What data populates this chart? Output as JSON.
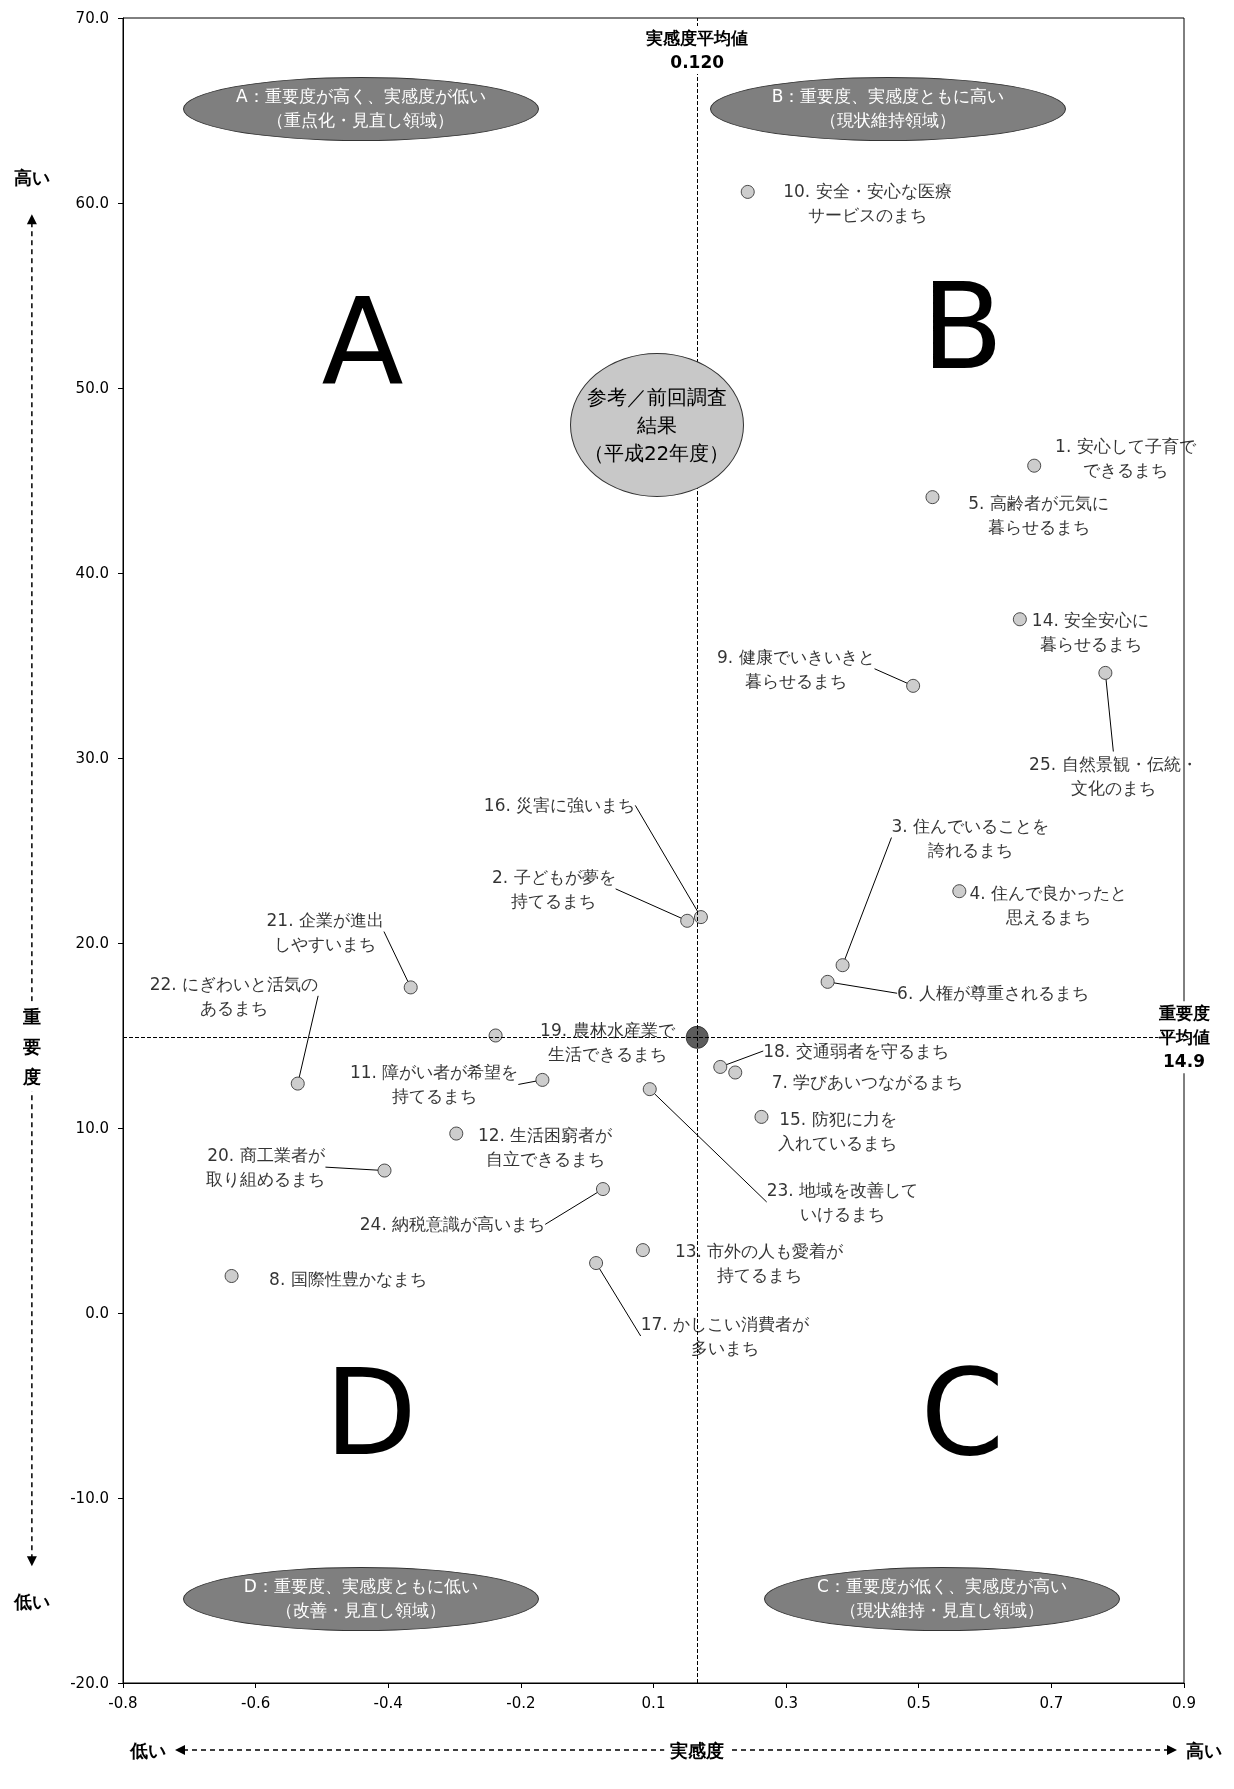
{
  "chart_data": {
    "type": "scatter",
    "xlabel": "実感度",
    "ylabel": "重要度",
    "marker": "circle",
    "xlim": [
      -0.8,
      0.9
    ],
    "ylim": [
      -20,
      70
    ],
    "xticks": [
      {
        "value": -0.8,
        "label": "-0.8"
      },
      {
        "value": -0.5875,
        "label": "-0.6"
      },
      {
        "value": -0.375,
        "label": "-0.4"
      },
      {
        "value": -0.1625,
        "label": "-0.2"
      },
      {
        "value": 0.05,
        "label": "0.1"
      },
      {
        "value": 0.2625,
        "label": "0.3"
      },
      {
        "value": 0.475,
        "label": "0.5"
      },
      {
        "value": 0.6875,
        "label": "0.7"
      },
      {
        "value": 0.9,
        "label": "0.9"
      }
    ],
    "yticks": [
      {
        "value": -20,
        "label": "-20.0"
      },
      {
        "value": -10,
        "label": "-10.0"
      },
      {
        "value": 0,
        "label": "0.0"
      },
      {
        "value": 10,
        "label": "10.0"
      },
      {
        "value": 20,
        "label": "20.0"
      },
      {
        "value": 30,
        "label": "30.0"
      },
      {
        "value": 40,
        "label": "40.0"
      },
      {
        "value": 50,
        "label": "50.0"
      },
      {
        "value": 60,
        "label": "60.0"
      },
      {
        "value": 70,
        "label": "70.0"
      }
    ],
    "series": [
      {
        "color": "#c0c0c0",
        "x": [
          0.66,
          0.104,
          0.353,
          0.54,
          0.497,
          0.329,
          0.181,
          -0.626,
          0.466,
          0.201,
          -0.128,
          -0.266,
          0.033,
          0.637,
          0.223,
          0.126,
          -0.042,
          0.157,
          -0.203,
          -0.381,
          -0.339,
          -0.52,
          0.044,
          -0.031,
          0.774
        ],
        "values": [
          45.8,
          21.2,
          18.8,
          22.8,
          44.1,
          17.9,
          13.0,
          2.0,
          33.9,
          60.6,
          12.6,
          9.7,
          3.4,
          37.5,
          10.6,
          21.4,
          2.7,
          13.3,
          15.0,
          7.7,
          17.6,
          12.4,
          12.1,
          6.7,
          34.6
        ]
      },
      {
        "color": "#333333",
        "x": [
          0.12
        ],
        "values": [
          14.9
        ]
      }
    ],
    "ref_lines": [
      {
        "axis": "x",
        "value": 0.12,
        "label": "実感度平均値0.120",
        "line_style": "dashed"
      },
      {
        "axis": "y",
        "value": 14.9,
        "label": "重要度平均値14.9",
        "line_style": "dashed"
      }
    ],
    "annotations": [
      {
        "text": "1. 安心して子育でできるまち",
        "x": 0.66,
        "y": 45.8
      },
      {
        "text": "2. 子どもが夢を持てるまち",
        "x": 0.104,
        "y": 21.2
      },
      {
        "text": "3. 住んでいることを誇れるまち",
        "x": 0.353,
        "y": 18.8
      },
      {
        "text": "4. 住んで良かったと思えるまち",
        "x": 0.54,
        "y": 22.8
      },
      {
        "text": "5. 高齢者が元気に暮らせるまち",
        "x": 0.497,
        "y": 44.1
      },
      {
        "text": "6. 人権が尊重されるまち",
        "x": 0.329,
        "y": 17.9
      },
      {
        "text": "7. 学びあいつながるまち",
        "x": 0.181,
        "y": 13.0
      },
      {
        "text": "8. 国際性豊かなまち",
        "x": -0.626,
        "y": 2.0
      },
      {
        "text": "9. 健康でいきいきと暮らせるまち",
        "x": 0.466,
        "y": 33.9
      },
      {
        "text": "10. 安全・安心な医療サービスのまち",
        "x": 0.201,
        "y": 60.6
      },
      {
        "text": "11. 障がい者が希望を持てるまち",
        "x": -0.128,
        "y": 12.6
      },
      {
        "text": "12. 生活困窮者が自立できるまち",
        "x": -0.266,
        "y": 9.7
      },
      {
        "text": "13. 市外の人も愛着が持てるまち",
        "x": 0.033,
        "y": 3.4
      },
      {
        "text": "14. 安全安心に暮らせるまち",
        "x": 0.637,
        "y": 37.5
      },
      {
        "text": "15. 防犯に力を入れているまち",
        "x": 0.223,
        "y": 10.6
      },
      {
        "text": "16. 災害に強いまち",
        "x": 0.126,
        "y": 21.4
      },
      {
        "text": "17. かしこい消費者が多いまち",
        "x": -0.042,
        "y": 2.7
      },
      {
        "text": "18. 交通弱者を守るまち",
        "x": 0.157,
        "y": 13.3
      },
      {
        "text": "19. 農林水産業で生活できるまち",
        "x": -0.203,
        "y": 15.0
      },
      {
        "text": "20. 商工業者が取り組めるまち",
        "x": -0.381,
        "y": 7.7
      },
      {
        "text": "21. 企業が進出しやすいまち",
        "x": -0.339,
        "y": 17.6
      },
      {
        "text": "22. にぎわいと活気のあるまち",
        "x": -0.52,
        "y": 12.4
      },
      {
        "text": "23. 地域を改善していけるまち",
        "x": 0.044,
        "y": 12.1
      },
      {
        "text": "24. 納税意識が高いまち",
        "x": -0.031,
        "y": 6.7
      },
      {
        "text": "25. 自然景観・伝統・文化のまち",
        "x": 0.774,
        "y": 34.6
      },
      "A：重要度が高く、実感度が低い（重点化・見直し領域）",
      "B：重要度、実感度ともに高い（現状維持領域）",
      "C：重要度が低く、実感度が高い（現状維持・見直し領域）",
      "D：重要度、実感度ともに低い（改善・見直し領域）",
      "A",
      "B",
      "C",
      "D",
      "参考／前回調査結果（平成22年度）",
      "高い",
      "低い",
      "低い",
      "高い"
    ]
  }
}
